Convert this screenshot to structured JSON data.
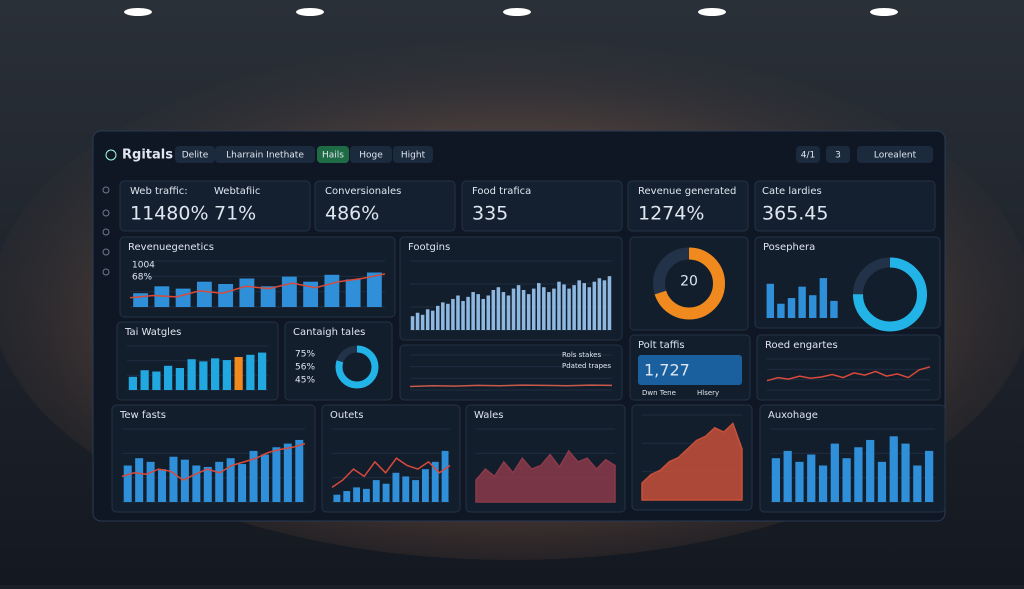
{
  "header": {
    "title": "Rgitals",
    "tabs": [
      "Delite",
      "Lharrain Inethate",
      "Hails",
      "Hoge",
      "Hight"
    ],
    "controls": [
      "4/1",
      "3",
      "Lorealent"
    ]
  },
  "kpis": [
    {
      "label": "Web traffic:",
      "value": "11480%"
    },
    {
      "label": "Webtafiic",
      "value": "71%"
    },
    {
      "label": "Conversionales",
      "value": "486%"
    },
    {
      "label": "Food trafica",
      "value": "335"
    },
    {
      "label": "Revenue generated",
      "value": "1274%"
    },
    {
      "label": "Cate lardies",
      "value": "365.45"
    }
  ],
  "panels": [
    {
      "title": "Revenuegenetics",
      "type": "barline",
      "labels": [
        "1004",
        "68%"
      ],
      "ylim": [
        0,
        100
      ],
      "values": [
        30,
        45,
        40,
        55,
        50,
        62,
        45,
        66,
        55,
        70,
        60,
        75
      ],
      "line": [
        20,
        25,
        22,
        35,
        30,
        45,
        40,
        52,
        42,
        55,
        62,
        72
      ]
    },
    {
      "title": "Footgins",
      "type": "bar",
      "ylim": [
        0,
        100
      ],
      "color": "#8fb8e0",
      "values": [
        20,
        25,
        22,
        30,
        28,
        35,
        40,
        38,
        45,
        50,
        42,
        48,
        55,
        52,
        45,
        50,
        58,
        62,
        55,
        50,
        60,
        65,
        58,
        52,
        60,
        68,
        62,
        55,
        60,
        70,
        66,
        60,
        65,
        72,
        68,
        62,
        70,
        75,
        72,
        78
      ]
    },
    {
      "type": "donut",
      "ylim": [
        0,
        100
      ],
      "value": 70,
      "color": "#f08a1e",
      "labels": [
        "20"
      ]
    },
    {
      "title": "Posephera",
      "type": "gauge",
      "ylim": [
        0,
        100
      ],
      "value": 75,
      "color": "#22b4e6",
      "values": [
        60,
        25,
        35,
        55,
        40,
        70,
        30
      ]
    },
    {
      "title": "Tai Watgles",
      "type": "bar",
      "ylim": [
        0,
        100
      ],
      "color": "#22a8e0",
      "highlight": 9,
      "values": [
        30,
        45,
        42,
        55,
        50,
        70,
        65,
        72,
        68,
        75,
        80,
        85
      ]
    },
    {
      "title": "Cantaigh tales",
      "type": "donut",
      "ylim": [
        0,
        100
      ],
      "value": 80,
      "color": "#22b4e6",
      "labels": [
        "75%",
        "56%",
        "45%"
      ]
    },
    {
      "type": "line",
      "ylim": [
        0,
        100
      ],
      "color": "#c85a4a",
      "labels": [
        "Rols stakes",
        "Pdated trapes"
      ],
      "values": [
        10,
        12,
        11,
        13,
        12,
        14,
        13,
        12,
        14,
        13
      ]
    },
    {
      "title": "Polt taffis",
      "type": "kpi",
      "labels": [
        "1,727",
        "Dwn Tene",
        "Hlsery"
      ]
    },
    {
      "title": "Roed engartes",
      "type": "line",
      "ylim": [
        0,
        100
      ],
      "color": "#d84a3a",
      "values": [
        30,
        40,
        35,
        45,
        38,
        42,
        50,
        40,
        55,
        48,
        60,
        45,
        52,
        40,
        65,
        75
      ]
    },
    {
      "title": "Tew fasts",
      "type": "barline",
      "ylim": [
        0,
        100
      ],
      "values": [
        50,
        60,
        55,
        45,
        62,
        58,
        50,
        48,
        55,
        60,
        52,
        70,
        65,
        75,
        80,
        85
      ],
      "line": [
        35,
        40,
        38,
        45,
        42,
        30,
        38,
        45,
        40,
        50,
        55,
        60,
        68,
        72,
        75,
        80
      ]
    },
    {
      "title": "Outets",
      "type": "barline",
      "ylim": [
        0,
        100
      ],
      "values": [
        10,
        15,
        20,
        18,
        30,
        25,
        40,
        35,
        30,
        45,
        55,
        70
      ],
      "line": [
        20,
        30,
        45,
        35,
        55,
        40,
        60,
        50,
        45,
        55,
        40,
        50
      ]
    },
    {
      "title": "Wales",
      "type": "area",
      "ylim": [
        0,
        100
      ],
      "color": "#8a3a4a",
      "values": [
        30,
        45,
        35,
        55,
        40,
        60,
        45,
        50,
        65,
        48,
        70,
        55,
        60,
        45,
        58,
        50
      ]
    },
    {
      "type": "area",
      "ylim": [
        0,
        100
      ],
      "color": "#c8503a",
      "values": [
        20,
        30,
        35,
        45,
        50,
        60,
        70,
        75,
        85,
        80,
        90,
        60
      ]
    },
    {
      "title": "Auxohage",
      "type": "bar",
      "ylim": [
        0,
        100
      ],
      "color": "#2f8fd8",
      "values": [
        60,
        70,
        55,
        65,
        50,
        80,
        60,
        75,
        85,
        55,
        90,
        80,
        50,
        70
      ]
    }
  ]
}
